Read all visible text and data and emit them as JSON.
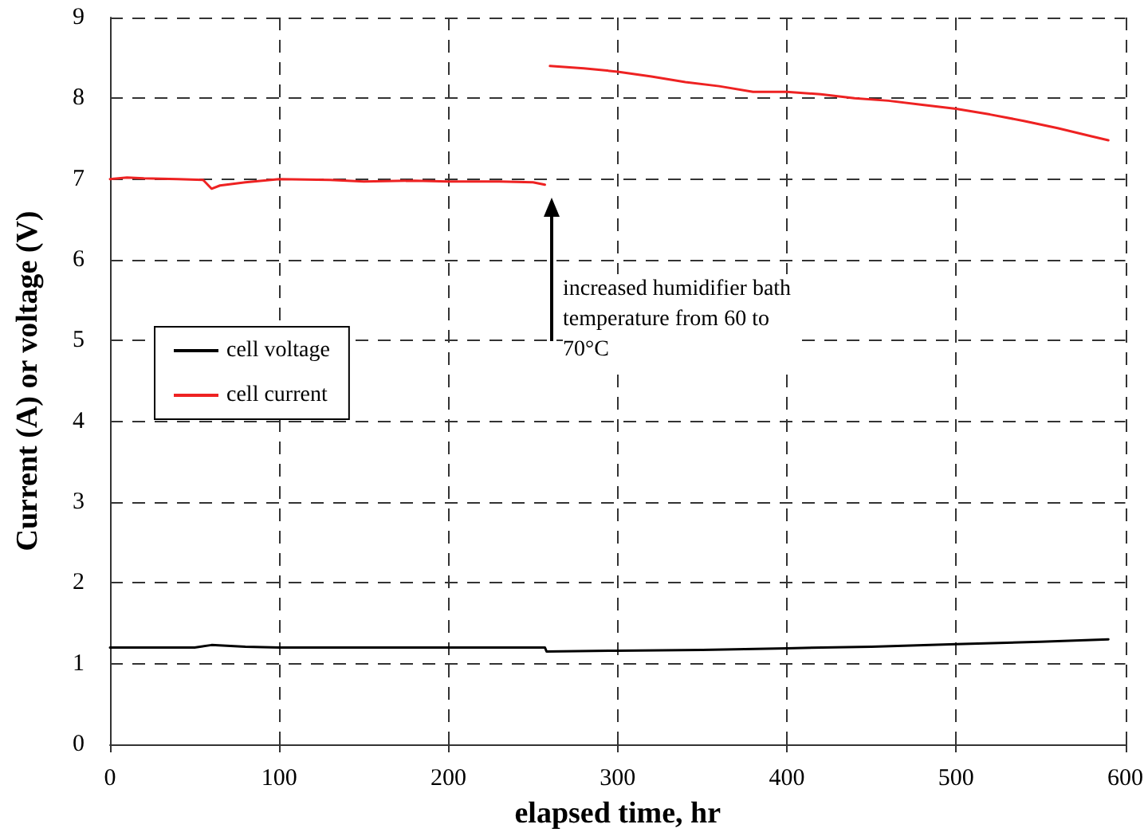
{
  "chart_data": {
    "type": "line",
    "xlabel": "elapsed time, hr",
    "ylabel": "Current (A) or voltage (V)",
    "xlim": [
      0,
      600
    ],
    "xticks": [
      0,
      100,
      200,
      300,
      400,
      500,
      600
    ],
    "ylim": [
      0,
      9
    ],
    "yticks": [
      0,
      1,
      2,
      3,
      4,
      5,
      6,
      7,
      8,
      9
    ],
    "grid": true,
    "legend": "left",
    "marker": "none",
    "line_style": "solid",
    "annotations": [
      "increased humidifier bath temperature from 60 to 70°C"
    ],
    "series": [
      {
        "name": "cell voltage",
        "color": "#000000",
        "x": [
          0,
          50,
          60,
          80,
          100,
          150,
          200,
          257,
          258,
          300,
          350,
          400,
          450,
          500,
          550,
          590
        ],
        "values": [
          1.2,
          1.2,
          1.23,
          1.21,
          1.2,
          1.2,
          1.2,
          1.2,
          1.15,
          1.16,
          1.17,
          1.19,
          1.21,
          1.24,
          1.27,
          1.3
        ]
      },
      {
        "name": "cell current",
        "color": "#ee2222",
        "x": [
          0,
          10,
          20,
          40,
          55,
          60,
          65,
          80,
          100,
          130,
          150,
          180,
          200,
          230,
          250,
          257,
          258,
          260,
          280,
          300,
          320,
          340,
          360,
          380,
          400,
          420,
          440,
          460,
          480,
          500,
          520,
          540,
          560,
          580,
          590
        ],
        "values": [
          7.0,
          7.02,
          7.01,
          7.0,
          6.99,
          6.88,
          6.92,
          6.96,
          7.0,
          6.99,
          6.97,
          6.98,
          6.97,
          6.97,
          6.96,
          6.93,
          null,
          8.4,
          8.37,
          8.33,
          8.27,
          8.2,
          8.15,
          8.08,
          8.08,
          8.05,
          8.0,
          7.97,
          7.92,
          7.87,
          7.8,
          7.72,
          7.63,
          7.53,
          7.48
        ]
      }
    ]
  }
}
